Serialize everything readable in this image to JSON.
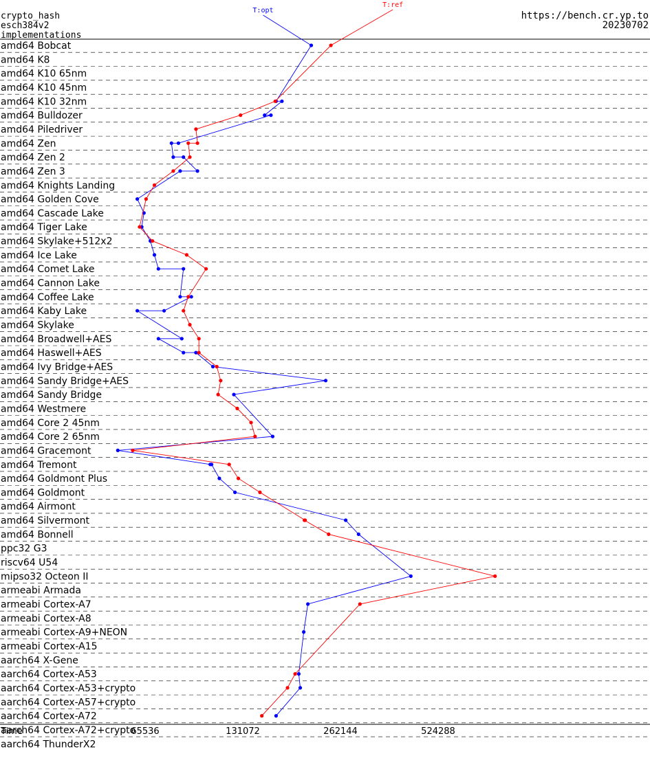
{
  "header": {
    "line1": "crypto_hash",
    "line2": "esch384v2",
    "line3": "implementations",
    "url": "https://bench.cr.yp.to",
    "date": "20230702"
  },
  "chart_data": {
    "type": "line",
    "xlabel": "Time",
    "xscale": "log",
    "xticks": [
      65536,
      131072,
      262144,
      524288
    ],
    "xlim": [
      32768,
      1048576
    ],
    "grid": "dashed horizontal separators between rows",
    "categories": [
      "amd64 Bobcat",
      "amd64 K8",
      "amd64 K10 65nm",
      "amd64 K10 45nm",
      "amd64 K10 32nm",
      "amd64 Bulldozer",
      "amd64 Piledriver",
      "amd64 Zen",
      "amd64 Zen 2",
      "amd64 Zen 3",
      "amd64 Knights Landing",
      "amd64 Golden Cove",
      "amd64 Cascade Lake",
      "amd64 Tiger Lake",
      "amd64 Skylake+512x2",
      "amd64 Ice Lake",
      "amd64 Comet Lake",
      "amd64 Cannon Lake",
      "amd64 Coffee Lake",
      "amd64 Kaby Lake",
      "amd64 Skylake",
      "amd64 Broadwell+AES",
      "amd64 Haswell+AES",
      "amd64 Ivy Bridge+AES",
      "amd64 Sandy Bridge+AES",
      "amd64 Sandy Bridge",
      "amd64 Westmere",
      "amd64 Core 2 45nm",
      "amd64 Core 2 65nm",
      "amd64 Gracemont",
      "amd64 Tremont",
      "amd64 Goldmont Plus",
      "amd64 Goldmont",
      "amd64 Airmont",
      "amd64 Silvermont",
      "amd64 Bonnell",
      "ppc32 G3",
      "riscv64 U54",
      "mipso32 Octeon II",
      "armeabi Armada",
      "armeabi Cortex-A7",
      "armeabi Cortex-A8",
      "armeabi Cortex-A9+NEON",
      "armeabi Cortex-A15",
      "aarch64 X-Gene",
      "aarch64 Cortex-A53",
      "aarch64 Cortex-A53+crypto",
      "aarch64 Cortex-A57+crypto",
      "aarch64 Cortex-A72",
      "aarch64 Cortex-A72+crypto",
      "aarch64 ThunderX2"
    ],
    "series": [
      {
        "name": "T:opt",
        "color": "#0000ff",
        "points": [
          {
            "row": 0,
            "x": 213000
          },
          {
            "row": 4,
            "x": 166000
          },
          {
            "row": 4,
            "x": 173000
          },
          {
            "row": 5,
            "x": 153000
          },
          {
            "row": 5,
            "x": 160000
          },
          {
            "row": 7,
            "x": 83000
          },
          {
            "row": 7,
            "x": 79000
          },
          {
            "row": 8,
            "x": 80000
          },
          {
            "row": 8,
            "x": 86000
          },
          {
            "row": 9,
            "x": 95000
          },
          {
            "row": 9,
            "x": 84000
          },
          {
            "row": 11,
            "x": 62000
          },
          {
            "row": 12,
            "x": 65000
          },
          {
            "row": 13,
            "x": 64000
          },
          {
            "row": 14,
            "x": 68000
          },
          {
            "row": 15,
            "x": 70000
          },
          {
            "row": 16,
            "x": 72000
          },
          {
            "row": 16,
            "x": 86000
          },
          {
            "row": 18,
            "x": 84000
          },
          {
            "row": 18,
            "x": 91000
          },
          {
            "row": 19,
            "x": 75000
          },
          {
            "row": 19,
            "x": 62000
          },
          {
            "row": 21,
            "x": 85000
          },
          {
            "row": 21,
            "x": 72000
          },
          {
            "row": 22,
            "x": 86000
          },
          {
            "row": 22,
            "x": 94000
          },
          {
            "row": 23,
            "x": 106000
          },
          {
            "row": 24,
            "x": 236000
          },
          {
            "row": 25,
            "x": 123000
          },
          {
            "row": 28,
            "x": 162000
          },
          {
            "row": 29,
            "x": 54000
          },
          {
            "row": 30,
            "x": 104000
          },
          {
            "row": 30,
            "x": 105000
          },
          {
            "row": 31,
            "x": 111000
          },
          {
            "row": 32,
            "x": 124000
          },
          {
            "row": 34,
            "x": 272000
          },
          {
            "row": 35,
            "x": 298000
          },
          {
            "row": 38,
            "x": 432000
          },
          {
            "row": 40,
            "x": 208000
          },
          {
            "row": 42,
            "x": 202000
          },
          {
            "row": 45,
            "x": 195000
          },
          {
            "row": 46,
            "x": 197000
          },
          {
            "row": 48,
            "x": 166000
          }
        ]
      },
      {
        "name": "T:ref",
        "color": "#ff0000",
        "points": [
          {
            "row": 0,
            "x": 245000
          },
          {
            "row": 4,
            "x": 165000
          },
          {
            "row": 5,
            "x": 129000
          },
          {
            "row": 6,
            "x": 94000
          },
          {
            "row": 7,
            "x": 95000
          },
          {
            "row": 7,
            "x": 89000
          },
          {
            "row": 8,
            "x": 90000
          },
          {
            "row": 9,
            "x": 80000
          },
          {
            "row": 10,
            "x": 70000
          },
          {
            "row": 11,
            "x": 66000
          },
          {
            "row": 13,
            "x": 63000
          },
          {
            "row": 14,
            "x": 69000
          },
          {
            "row": 15,
            "x": 88000
          },
          {
            "row": 16,
            "x": 101000
          },
          {
            "row": 18,
            "x": 89000
          },
          {
            "row": 19,
            "x": 86000
          },
          {
            "row": 20,
            "x": 90000
          },
          {
            "row": 21,
            "x": 96000
          },
          {
            "row": 22,
            "x": 96000
          },
          {
            "row": 23,
            "x": 109000
          },
          {
            "row": 24,
            "x": 112000
          },
          {
            "row": 25,
            "x": 110000
          },
          {
            "row": 26,
            "x": 126000
          },
          {
            "row": 27,
            "x": 139000
          },
          {
            "row": 28,
            "x": 143000
          },
          {
            "row": 29,
            "x": 60000
          },
          {
            "row": 30,
            "x": 119000
          },
          {
            "row": 31,
            "x": 127000
          },
          {
            "row": 32,
            "x": 148000
          },
          {
            "row": 34,
            "x": 204000
          },
          {
            "row": 34,
            "x": 203000
          },
          {
            "row": 35,
            "x": 241000
          },
          {
            "row": 38,
            "x": 785000
          },
          {
            "row": 40,
            "x": 301000
          },
          {
            "row": 45,
            "x": 190000
          },
          {
            "row": 46,
            "x": 180000
          },
          {
            "row": 48,
            "x": 150000
          }
        ]
      }
    ]
  }
}
